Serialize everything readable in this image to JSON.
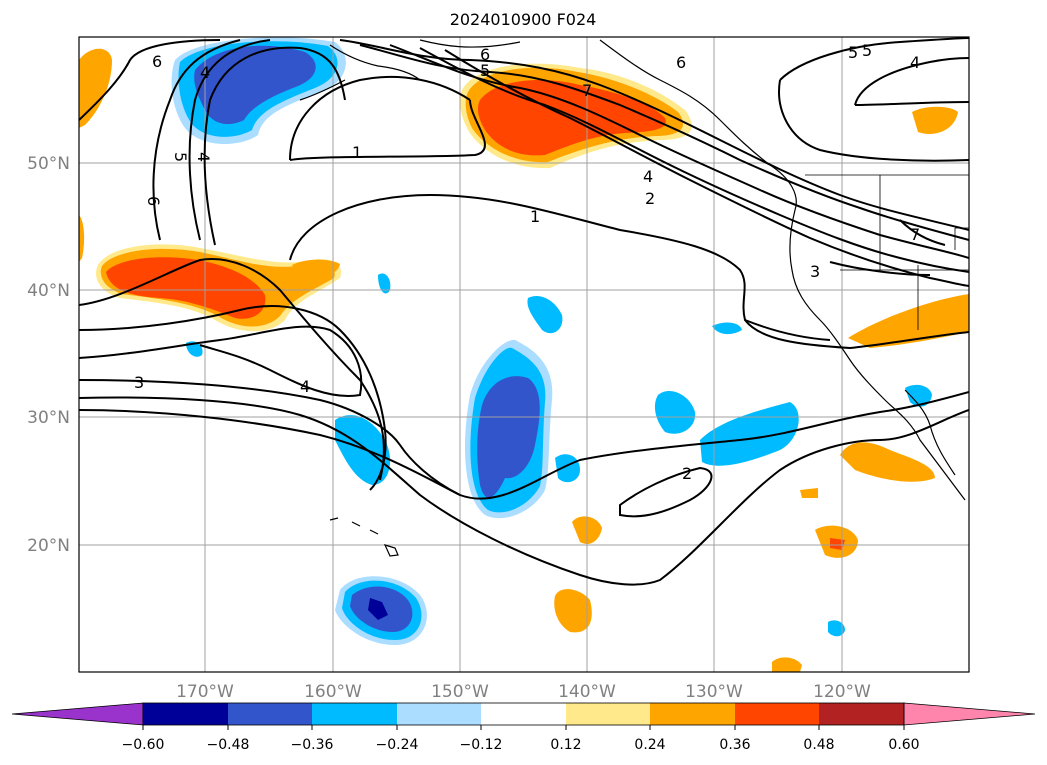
{
  "title": "2024010900 F024",
  "map": {
    "lat_labels": [
      "50°N",
      "40°N",
      "30°N",
      "20°N"
    ],
    "lon_labels": [
      "170°W",
      "160°W",
      "150°W",
      "140°W",
      "130°W",
      "120°W"
    ],
    "contour_labels": [
      "6",
      "5",
      "4",
      "6",
      "1",
      "5",
      "4",
      "6",
      "5",
      "6",
      "7",
      "4",
      "2",
      "1",
      "5",
      "4",
      "7",
      "3",
      "3",
      "4",
      "2"
    ],
    "contour_color": "#000000",
    "grid_color": "#a0a0a0"
  },
  "colorbar": {
    "ticks": [
      "−0.60",
      "−0.48",
      "−0.36",
      "−0.24",
      "−0.12",
      "0.12",
      "0.24",
      "0.36",
      "0.48",
      "0.60"
    ],
    "colors": [
      "#9933cc",
      "#000099",
      "#3355cc",
      "#00bbff",
      "#aaddff",
      "#ffffff",
      "#ffe98a",
      "#ffa500",
      "#ff4500",
      "#b22222",
      "#ff85ad"
    ]
  }
}
